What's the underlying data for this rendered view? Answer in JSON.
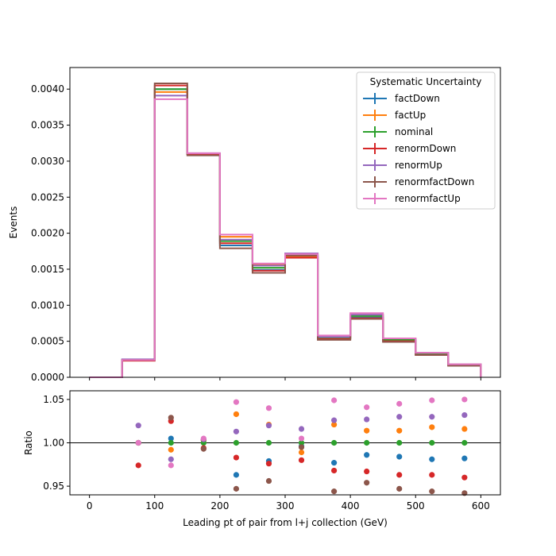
{
  "chart_data": [
    {
      "type": "line",
      "ylabel": "Events",
      "ylim": [
        0,
        0.0043
      ],
      "xlim": [
        -30,
        630
      ],
      "x_ticks": [
        0,
        100,
        200,
        300,
        400,
        500,
        600
      ],
      "y_ticks": [
        "0.0000",
        "0.0005",
        "0.0010",
        "0.0015",
        "0.0020",
        "0.0025",
        "0.0030",
        "0.0035",
        "0.0040"
      ],
      "bin_edges": [
        0,
        50,
        100,
        150,
        200,
        250,
        300,
        350,
        400,
        450,
        500,
        550,
        600
      ],
      "legend_title": "Systematic Uncertainty",
      "legend_position": "top-right",
      "series": [
        {
          "name": "factDown",
          "color": "#1f77b4",
          "values": [
            0,
            0.00024,
            0.004,
            0.0031,
            0.00183,
            0.00149,
            0.00168,
            0.00054,
            0.00083,
            0.00051,
            0.00032,
            0.00017
          ]
        },
        {
          "name": "factUp",
          "color": "#ff7f0e",
          "values": [
            0,
            0.00024,
            0.00396,
            0.0031,
            0.00195,
            0.00157,
            0.00168,
            0.00056,
            0.00087,
            0.00053,
            0.00034,
            0.00018
          ]
        },
        {
          "name": "nominal",
          "color": "#2ca02c",
          "values": [
            0,
            0.00024,
            0.004,
            0.0031,
            0.00189,
            0.00152,
            0.0017,
            0.00055,
            0.00085,
            0.00052,
            0.00033,
            0.00017
          ]
        },
        {
          "name": "renormDown",
          "color": "#d62728",
          "values": [
            0,
            0.00023,
            0.00405,
            0.0031,
            0.00186,
            0.00148,
            0.00166,
            0.00053,
            0.00082,
            0.0005,
            0.00031,
            0.00016
          ]
        },
        {
          "name": "renormUp",
          "color": "#9467bd",
          "values": [
            0,
            0.00025,
            0.00391,
            0.00311,
            0.00191,
            0.00155,
            0.00172,
            0.00056,
            0.00087,
            0.00054,
            0.00034,
            0.00018
          ]
        },
        {
          "name": "renormfactDown",
          "color": "#8c564b",
          "values": [
            0,
            0.00024,
            0.00408,
            0.00308,
            0.00179,
            0.00145,
            0.00169,
            0.00052,
            0.00081,
            0.00049,
            0.00031,
            0.00016
          ]
        },
        {
          "name": "renormfactUp",
          "color": "#e377c2",
          "values": [
            0,
            0.00024,
            0.00386,
            0.00311,
            0.00198,
            0.00158,
            0.00171,
            0.00058,
            0.00089,
            0.00054,
            0.00034,
            0.00018
          ]
        }
      ]
    },
    {
      "type": "scatter",
      "xlabel": "Leading pt of pair from l+j collection (GeV)",
      "ylabel": "Ratio",
      "ylim": [
        0.94,
        1.06
      ],
      "xlim": [
        -30,
        630
      ],
      "x_ticks": [
        0,
        100,
        200,
        300,
        400,
        500,
        600
      ],
      "y_ticks": [
        "0.95",
        "1.00",
        "1.05"
      ],
      "reference_line": 1.0,
      "x": [
        75,
        125,
        175,
        225,
        275,
        325,
        375,
        425,
        475,
        525,
        575
      ],
      "series": [
        {
          "name": "factDown",
          "color": "#1f77b4",
          "values": [
            1.0,
            1.005,
            1.003,
            0.963,
            0.979,
            0.996,
            0.977,
            0.986,
            0.984,
            0.981,
            0.982
          ]
        },
        {
          "name": "factUp",
          "color": "#ff7f0e",
          "values": [
            1.0,
            0.992,
            1.003,
            1.033,
            1.021,
            0.989,
            1.021,
            1.014,
            1.014,
            1.018,
            1.016
          ]
        },
        {
          "name": "nominal",
          "color": "#2ca02c",
          "values": [
            1.0,
            1.0,
            1.0,
            1.0,
            1.0,
            1.0,
            1.0,
            1.0,
            1.0,
            1.0,
            1.0
          ]
        },
        {
          "name": "renormDown",
          "color": "#d62728",
          "values": [
            0.974,
            1.025,
            0.994,
            0.983,
            0.976,
            0.98,
            0.968,
            0.967,
            0.963,
            0.963,
            0.96
          ]
        },
        {
          "name": "renormUp",
          "color": "#9467bd",
          "values": [
            1.02,
            0.981,
            1.004,
            1.013,
            1.02,
            1.016,
            1.026,
            1.027,
            1.03,
            1.03,
            1.032
          ]
        },
        {
          "name": "renormfactDown",
          "color": "#8c564b",
          "values": [
            1.0,
            1.029,
            0.993,
            0.947,
            0.956,
            0.995,
            0.944,
            0.954,
            0.947,
            0.944,
            0.942
          ]
        },
        {
          "name": "renormfactUp",
          "color": "#e377c2",
          "values": [
            1.0,
            0.974,
            1.005,
            1.047,
            1.04,
            1.005,
            1.049,
            1.041,
            1.045,
            1.049,
            1.05
          ]
        }
      ]
    }
  ]
}
